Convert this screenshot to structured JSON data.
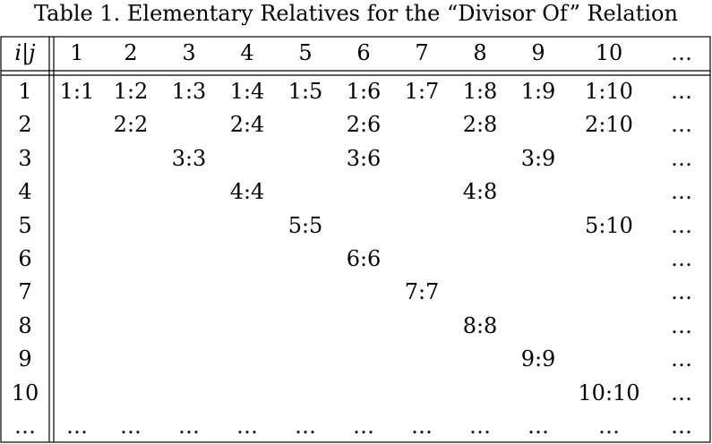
{
  "caption": "Table 1. Elementary Relatives for the “Divisor Of” Relation",
  "corner_label": "i|j",
  "column_headers": [
    "1",
    "2",
    "3",
    "4",
    "5",
    "6",
    "7",
    "8",
    "9",
    "10",
    "…"
  ],
  "rows": [
    {
      "header": "1",
      "cells": [
        "1:1",
        "1:2",
        "1:3",
        "1:4",
        "1:5",
        "1:6",
        "1:7",
        "1:8",
        "1:9",
        "1:10",
        "…"
      ]
    },
    {
      "header": "2",
      "cells": [
        "",
        "2:2",
        "",
        "2:4",
        "",
        "2:6",
        "",
        "2:8",
        "",
        "2:10",
        "…"
      ]
    },
    {
      "header": "3",
      "cells": [
        "",
        "",
        "3:3",
        "",
        "",
        "3:6",
        "",
        "",
        "3:9",
        "",
        "…"
      ]
    },
    {
      "header": "4",
      "cells": [
        "",
        "",
        "",
        "4:4",
        "",
        "",
        "",
        "4:8",
        "",
        "",
        "…"
      ]
    },
    {
      "header": "5",
      "cells": [
        "",
        "",
        "",
        "",
        "5:5",
        "",
        "",
        "",
        "",
        "5:10",
        "…"
      ]
    },
    {
      "header": "6",
      "cells": [
        "",
        "",
        "",
        "",
        "",
        "6:6",
        "",
        "",
        "",
        "",
        "…"
      ]
    },
    {
      "header": "7",
      "cells": [
        "",
        "",
        "",
        "",
        "",
        "",
        "7:7",
        "",
        "",
        "",
        "…"
      ]
    },
    {
      "header": "8",
      "cells": [
        "",
        "",
        "",
        "",
        "",
        "",
        "",
        "8:8",
        "",
        "",
        "…"
      ]
    },
    {
      "header": "9",
      "cells": [
        "",
        "",
        "",
        "",
        "",
        "",
        "",
        "",
        "9:9",
        "",
        "…"
      ]
    },
    {
      "header": "10",
      "cells": [
        "",
        "",
        "",
        "",
        "",
        "",
        "",
        "",
        "",
        "10:10",
        "…"
      ]
    },
    {
      "header": "…",
      "cells": [
        "…",
        "…",
        "…",
        "…",
        "…",
        "…",
        "…",
        "…",
        "…",
        "…",
        "…"
      ]
    }
  ]
}
